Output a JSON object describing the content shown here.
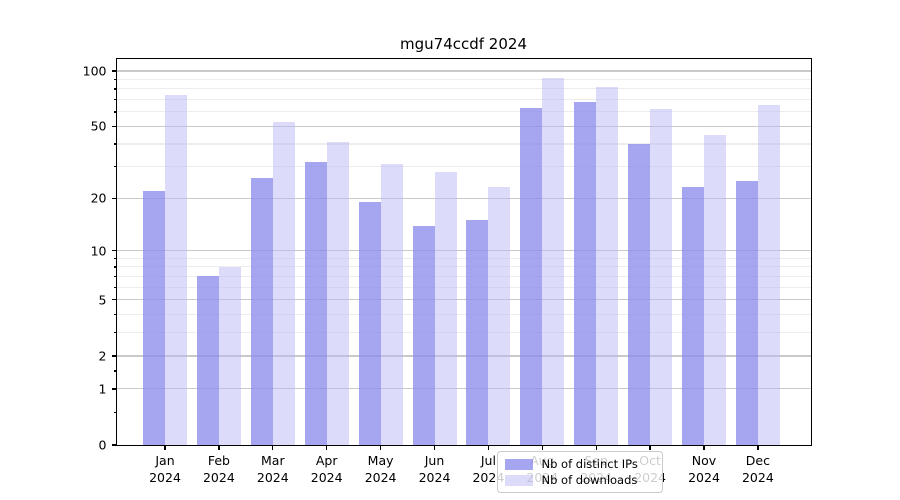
{
  "title": "mgu74ccdf 2024",
  "colors": {
    "bar_distinct_ips": "rgba(141,141,236,0.78)",
    "bar_downloads": "rgba(185,185,245,0.5)",
    "grid_major": "#c9c9c9",
    "grid_minor": "#ededed",
    "axis": "#000000",
    "legend_border": "#cccccc",
    "legend_bg": "rgba(255,255,255,0.8)"
  },
  "legend": {
    "items": [
      {
        "label": "Nb of distinct IPs"
      },
      {
        "label": "Nb of downloads"
      }
    ]
  },
  "chart_data": {
    "type": "bar",
    "title": "mgu74ccdf 2024",
    "categories": [
      "Jan",
      "Feb",
      "Mar",
      "Apr",
      "May",
      "Jun",
      "Jul",
      "Aug",
      "Sep",
      "Oct",
      "Nov",
      "Dec"
    ],
    "year": "2024",
    "series": [
      {
        "name": "Nb of distinct IPs",
        "color": "rgba(141,141,236,0.78)",
        "values": [
          22,
          7,
          26,
          32,
          19,
          14,
          15,
          63,
          68,
          40,
          23,
          25
        ]
      },
      {
        "name": "Nb of downloads",
        "color": "rgba(185,185,245,0.5)",
        "values": [
          74,
          8,
          53,
          41,
          31,
          28,
          23,
          92,
          82,
          62,
          45,
          65
        ]
      }
    ],
    "xlabel": "",
    "ylabel": "",
    "yscale": "log1p",
    "ylim": [
      0,
      116
    ],
    "yticks": [
      0,
      1,
      2,
      5,
      10,
      20,
      50,
      100
    ],
    "yticks_minor_grid": [
      3,
      4,
      6,
      7,
      8,
      9,
      30,
      40,
      60,
      70,
      80,
      90
    ],
    "yticks_minor_tick_only": [
      0.5,
      1.5
    ],
    "grid": true,
    "legend_position": "bottom-center"
  }
}
